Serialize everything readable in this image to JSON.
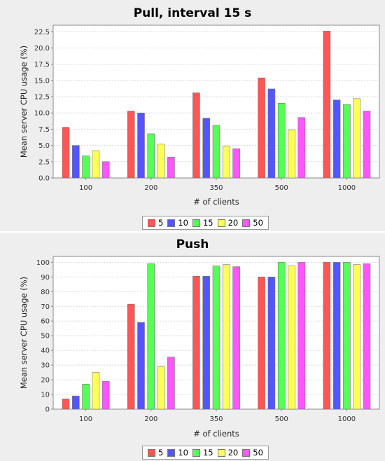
{
  "chart_data": [
    {
      "type": "bar",
      "title": "Pull, interval 15 s",
      "xlabel": "# of clients",
      "ylabel": "Mean server CPU usage (%)",
      "ylim": [
        0,
        23.5
      ],
      "yticks": [
        "0.0",
        "2.5",
        "5.0",
        "7.5",
        "10.0",
        "12.5",
        "15.0",
        "17.5",
        "20.0",
        "22.5"
      ],
      "categories": [
        "100",
        "200",
        "350",
        "500",
        "1000"
      ],
      "grid": true,
      "legend_position": "bottom",
      "series": [
        {
          "name": "5",
          "color": "#ff5555",
          "values": [
            7.8,
            10.3,
            13.1,
            15.4,
            22.6
          ]
        },
        {
          "name": "10",
          "color": "#5555ff",
          "values": [
            5.0,
            10.0,
            9.2,
            13.7,
            12.0
          ]
        },
        {
          "name": "15",
          "color": "#55ff55",
          "values": [
            3.4,
            6.8,
            8.1,
            11.5,
            11.3
          ]
        },
        {
          "name": "20",
          "color": "#ffff55",
          "values": [
            4.2,
            5.2,
            4.9,
            7.4,
            12.2
          ]
        },
        {
          "name": "50",
          "color": "#ff55ff",
          "values": [
            2.5,
            3.2,
            4.5,
            9.3,
            10.3
          ]
        }
      ]
    },
    {
      "type": "bar",
      "title": "Push",
      "xlabel": "# of clients",
      "ylabel": "Mean server CPU usage (%)",
      "ylim": [
        0,
        104
      ],
      "yticks": [
        "0",
        "10",
        "20",
        "30",
        "40",
        "50",
        "60",
        "70",
        "80",
        "90",
        "100"
      ],
      "categories": [
        "100",
        "200",
        "350",
        "500",
        "1000"
      ],
      "grid": true,
      "legend_position": "bottom",
      "series": [
        {
          "name": "5",
          "color": "#ff5555",
          "values": [
            7,
            71.5,
            90.5,
            90,
            100
          ]
        },
        {
          "name": "10",
          "color": "#5555ff",
          "values": [
            9,
            59,
            90.5,
            90,
            100
          ]
        },
        {
          "name": "15",
          "color": "#55ff55",
          "values": [
            17,
            99,
            97.5,
            100,
            100
          ]
        },
        {
          "name": "20",
          "color": "#ffff55",
          "values": [
            25,
            29,
            98.5,
            97.5,
            98.5
          ]
        },
        {
          "name": "50",
          "color": "#ff55ff",
          "values": [
            19,
            35.5,
            97,
            100,
            99
          ]
        }
      ]
    }
  ]
}
